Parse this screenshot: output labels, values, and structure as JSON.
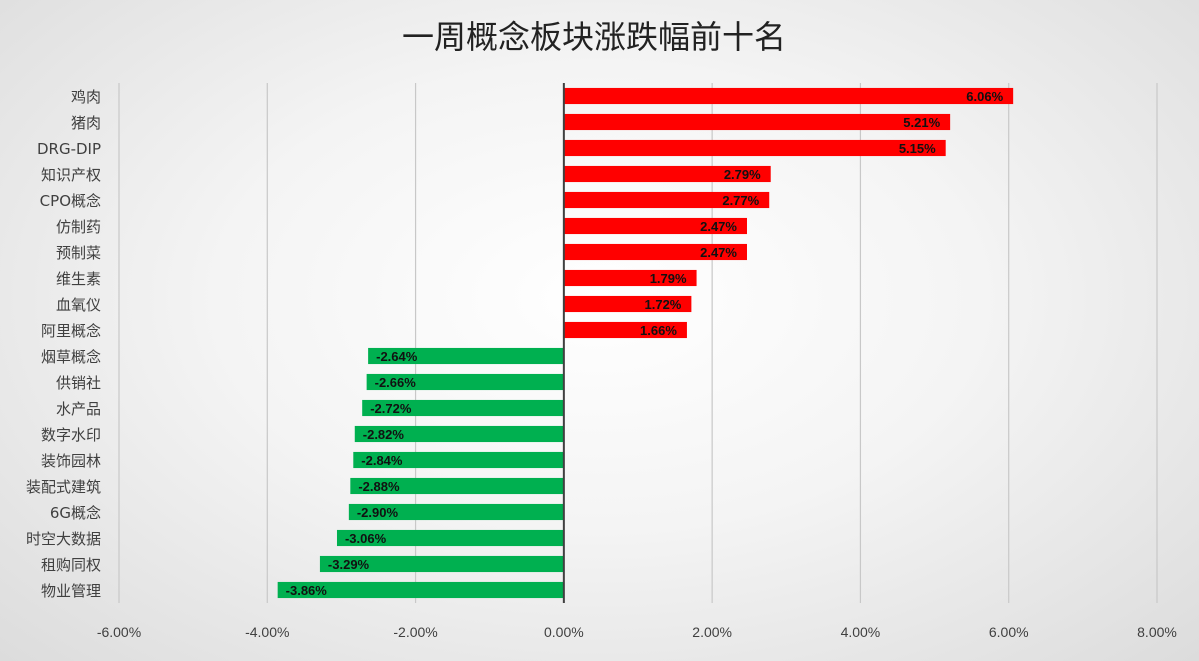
{
  "chart_data": {
    "type": "bar",
    "orientation": "horizontal",
    "title": "一周概念板块涨跌幅前十名",
    "xlabel": "",
    "ylabel": "",
    "xlim": [
      -0.06,
      0.08
    ],
    "xticks": [
      -0.06,
      -0.04,
      -0.02,
      0,
      0.02,
      0.04,
      0.06,
      0.08
    ],
    "xtick_labels": [
      "-6.00%",
      "-4.00%",
      "-2.00%",
      "0.00%",
      "2.00%",
      "4.00%",
      "6.00%",
      "8.00%"
    ],
    "grid": "vertical",
    "legend": "none",
    "positive_color": "#ff0000",
    "negative_color": "#00b050",
    "categories": [
      "鸡肉",
      "猪肉",
      "DRG-DIP",
      "知识产权",
      "CPO概念",
      "仿制药",
      "预制菜",
      "维生素",
      "血氧仪",
      "阿里概念",
      "烟草概念",
      "供销社",
      "水产品",
      "数字水印",
      "装饰园林",
      "装配式建筑",
      "6G概念",
      "时空大数据",
      "租购同权",
      "物业管理"
    ],
    "values": [
      0.0606,
      0.0521,
      0.0515,
      0.0279,
      0.0277,
      0.0247,
      0.0247,
      0.0179,
      0.0172,
      0.0166,
      -0.0264,
      -0.0266,
      -0.0272,
      -0.0282,
      -0.0284,
      -0.0288,
      -0.029,
      -0.0306,
      -0.0329,
      -0.0386
    ],
    "data_labels": [
      "6.06%",
      "5.21%",
      "5.15%",
      "2.79%",
      "2.77%",
      "2.47%",
      "2.47%",
      "1.79%",
      "1.72%",
      "1.66%",
      "-2.64%",
      "-2.66%",
      "-2.72%",
      "-2.82%",
      "-2.84%",
      "-2.88%",
      "-2.90%",
      "-3.06%",
      "-3.29%",
      "-3.86%"
    ]
  }
}
